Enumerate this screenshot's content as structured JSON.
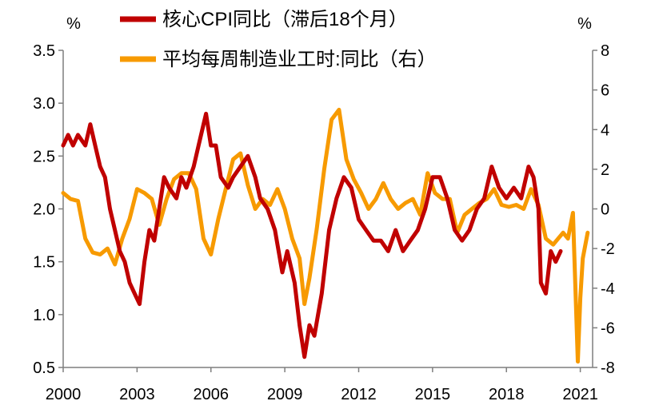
{
  "chart_data": {
    "type": "line",
    "left_axis": {
      "unit": "%",
      "ylim": [
        0.5,
        3.5
      ],
      "ticks": [
        "0.5",
        "1.0",
        "1.5",
        "2.0",
        "2.5",
        "3.0",
        "3.5"
      ]
    },
    "right_axis": {
      "unit": "%",
      "ylim": [
        -8,
        8
      ],
      "ticks": [
        "-8",
        "-6",
        "-4",
        "-2",
        "0",
        "2",
        "4",
        "6",
        "8"
      ]
    },
    "x_axis": {
      "xlim": [
        2000,
        2021.5
      ],
      "ticks": [
        "2000",
        "2003",
        "2006",
        "2009",
        "2012",
        "2015",
        "2018",
        "2021"
      ]
    },
    "grid": false,
    "legend_position": "top",
    "series": [
      {
        "name": "核心CPI同比（滞后18个月）",
        "axis": "left",
        "color": "#c00000",
        "x": [
          2000.0,
          2000.2,
          2000.4,
          2000.6,
          2000.9,
          2001.1,
          2001.3,
          2001.5,
          2001.7,
          2001.9,
          2002.1,
          2002.3,
          2002.5,
          2002.7,
          2002.9,
          2003.1,
          2003.3,
          2003.5,
          2003.7,
          2003.9,
          2004.1,
          2004.3,
          2004.6,
          2004.8,
          2005.0,
          2005.3,
          2005.5,
          2005.8,
          2006.0,
          2006.2,
          2006.4,
          2006.7,
          2006.9,
          2007.2,
          2007.5,
          2007.8,
          2008.0,
          2008.3,
          2008.6,
          2008.9,
          2009.1,
          2009.4,
          2009.6,
          2009.8,
          2010.0,
          2010.2,
          2010.5,
          2010.8,
          2011.1,
          2011.4,
          2011.7,
          2012.0,
          2012.3,
          2012.6,
          2012.9,
          2013.2,
          2013.5,
          2013.8,
          2014.1,
          2014.4,
          2014.7,
          2015.0,
          2015.3,
          2015.6,
          2015.9,
          2016.2,
          2016.5,
          2016.8,
          2017.1,
          2017.4,
          2017.7,
          2018.0,
          2018.3,
          2018.6,
          2018.9,
          2019.1,
          2019.3,
          2019.4,
          2019.6,
          2019.8,
          2020.0,
          2020.2
        ],
        "values": [
          2.6,
          2.7,
          2.6,
          2.7,
          2.6,
          2.8,
          2.6,
          2.4,
          2.3,
          2.0,
          1.8,
          1.6,
          1.5,
          1.3,
          1.2,
          1.1,
          1.5,
          1.8,
          1.7,
          2.0,
          2.3,
          2.2,
          2.1,
          2.3,
          2.2,
          2.4,
          2.6,
          2.9,
          2.6,
          2.6,
          2.3,
          2.2,
          2.3,
          2.4,
          2.5,
          2.3,
          2.1,
          2.0,
          1.8,
          1.4,
          1.6,
          1.3,
          0.9,
          0.6,
          0.9,
          0.8,
          1.2,
          1.8,
          2.1,
          2.3,
          2.2,
          1.9,
          1.8,
          1.7,
          1.7,
          1.6,
          1.8,
          1.6,
          1.7,
          1.8,
          2.0,
          2.3,
          2.3,
          2.1,
          1.8,
          1.7,
          1.8,
          2.0,
          2.1,
          2.4,
          2.2,
          2.1,
          2.2,
          2.1,
          2.4,
          2.3,
          2.0,
          1.3,
          1.2,
          1.6,
          1.5,
          1.6
        ]
      },
      {
        "name": "平均每周制造业工时:同比（右）",
        "axis": "right",
        "color": "#f79a00",
        "x": [
          2000.0,
          2000.3,
          2000.6,
          2000.9,
          2001.2,
          2001.5,
          2001.8,
          2002.1,
          2002.4,
          2002.7,
          2003.0,
          2003.3,
          2003.6,
          2003.9,
          2004.2,
          2004.5,
          2004.8,
          2005.1,
          2005.4,
          2005.7,
          2006.0,
          2006.3,
          2006.6,
          2006.9,
          2007.2,
          2007.5,
          2007.8,
          2008.1,
          2008.4,
          2008.7,
          2009.0,
          2009.3,
          2009.6,
          2009.8,
          2010.0,
          2010.3,
          2010.6,
          2010.9,
          2011.2,
          2011.5,
          2011.8,
          2012.1,
          2012.4,
          2012.7,
          2013.0,
          2013.3,
          2013.6,
          2013.9,
          2014.2,
          2014.5,
          2014.8,
          2015.1,
          2015.4,
          2015.7,
          2016.0,
          2016.3,
          2016.6,
          2016.9,
          2017.2,
          2017.5,
          2017.8,
          2018.1,
          2018.4,
          2018.7,
          2019.0,
          2019.3,
          2019.6,
          2019.9,
          2020.1,
          2020.3,
          2020.5,
          2020.7,
          2020.9,
          2021.0,
          2021.1,
          2021.3
        ],
        "values": [
          0.8,
          0.5,
          0.4,
          -1.5,
          -2.2,
          -2.3,
          -2.0,
          -2.8,
          -1.5,
          -0.5,
          1.0,
          0.8,
          0.5,
          -0.8,
          0.5,
          1.5,
          1.8,
          1.8,
          1.0,
          -1.5,
          -2.3,
          -0.5,
          1.0,
          2.5,
          2.8,
          1.2,
          0.0,
          0.5,
          0.2,
          1.0,
          0.0,
          -1.5,
          -2.5,
          -4.8,
          -3.5,
          -1.0,
          2.0,
          4.5,
          5.0,
          2.5,
          1.5,
          0.8,
          0.0,
          0.5,
          1.3,
          0.5,
          0.0,
          0.3,
          0.5,
          -0.3,
          1.8,
          0.8,
          0.5,
          0.5,
          -1.2,
          -0.3,
          0.0,
          0.3,
          0.5,
          1.0,
          0.2,
          0.1,
          0.2,
          0.0,
          1.0,
          0.2,
          -1.5,
          -1.8,
          -1.5,
          -1.2,
          -1.5,
          -0.2,
          -7.7,
          -4.5,
          -2.5,
          -1.2
        ]
      }
    ]
  }
}
